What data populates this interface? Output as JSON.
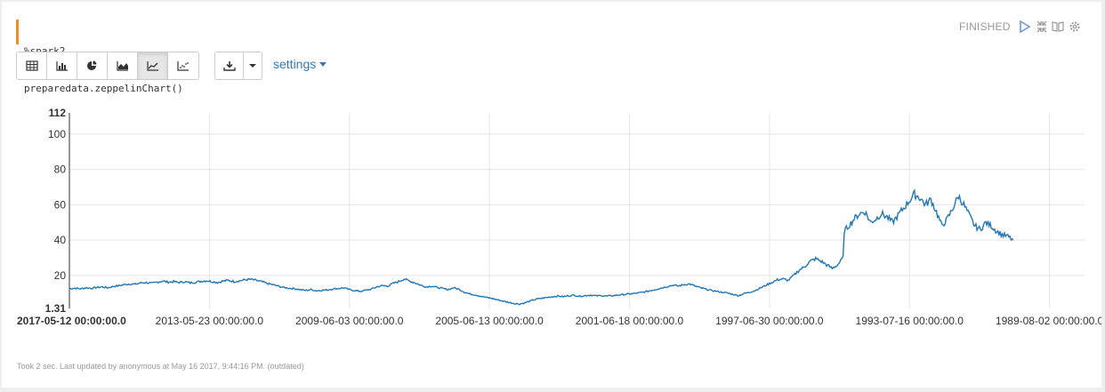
{
  "paragraph": {
    "code_lines": [
      "%spark2",
      "preparedata.zeppelinChart()"
    ],
    "status": "FINISHED",
    "controls": [
      "run-icon",
      "expand-collapse-icon",
      "book-icon",
      "gear-icon"
    ]
  },
  "toolbar": {
    "chart_buttons": [
      "table-icon",
      "bar-chart-icon",
      "pie-chart-icon",
      "area-chart-icon",
      "line-chart-icon",
      "scatter-chart-icon"
    ],
    "active_chart": "line-chart-icon",
    "download_icon": "download-icon",
    "settings_label": "settings"
  },
  "footer": {
    "text": "Took 2 sec. Last updated by anonymous at May 16 2017, 9:44:16 PM. (outdated)"
  },
  "colors": {
    "line": "#1f77b4",
    "accent": "#f48c22",
    "link": "#337ab7"
  },
  "chart_data": {
    "type": "line",
    "title": "",
    "xlabel": "",
    "ylabel": "",
    "x_ticks": [
      "2017-05-12 00:00:00.0",
      "2013-05-23 00:00:00.0",
      "2009-06-03 00:00:00.0",
      "2005-06-13 00:00:00.0",
      "2001-06-18 00:00:00.0",
      "1997-06-30 00:00:00.0",
      "1993-07-16 00:00:00.0",
      "1989-08-02 00:00:00.0"
    ],
    "y_ticks": [
      20,
      40,
      60,
      80,
      100
    ],
    "ylim": [
      1.31,
      112
    ],
    "ylim_labels": [
      "1.31",
      "112"
    ],
    "grid": true,
    "x_index_range": [
      0,
      1850
    ],
    "series": [
      {
        "values": [
          [
            0,
            12.5
          ],
          [
            10,
            12.8
          ],
          [
            20,
            12.4
          ],
          [
            30,
            13.0
          ],
          [
            40,
            12.7
          ],
          [
            50,
            13.2
          ],
          [
            60,
            13.5
          ],
          [
            70,
            13.0
          ],
          [
            80,
            13.8
          ],
          [
            90,
            14.2
          ],
          [
            100,
            14.8
          ],
          [
            110,
            15.2
          ],
          [
            120,
            15.0
          ],
          [
            130,
            15.8
          ],
          [
            140,
            16.0
          ],
          [
            150,
            15.5
          ],
          [
            160,
            16.2
          ],
          [
            170,
            16.8
          ],
          [
            180,
            16.2
          ],
          [
            190,
            16.5
          ],
          [
            200,
            16.0
          ],
          [
            210,
            16.4
          ],
          [
            220,
            15.8
          ],
          [
            230,
            16.2
          ],
          [
            240,
            16.7
          ],
          [
            250,
            17.0
          ],
          [
            260,
            16.5
          ],
          [
            270,
            16.0
          ],
          [
            280,
            16.8
          ],
          [
            290,
            17.2
          ],
          [
            300,
            16.5
          ],
          [
            310,
            17.0
          ],
          [
            320,
            17.5
          ],
          [
            330,
            17.8
          ],
          [
            340,
            17.2
          ],
          [
            350,
            16.5
          ],
          [
            360,
            15.5
          ],
          [
            370,
            14.8
          ],
          [
            380,
            14.0
          ],
          [
            390,
            13.2
          ],
          [
            400,
            12.8
          ],
          [
            410,
            12.5
          ],
          [
            420,
            12.0
          ],
          [
            430,
            11.5
          ],
          [
            440,
            12.0
          ],
          [
            450,
            11.3
          ],
          [
            460,
            11.6
          ],
          [
            470,
            11.8
          ],
          [
            480,
            12.3
          ],
          [
            490,
            12.6
          ],
          [
            500,
            13.0
          ],
          [
            510,
            12.0
          ],
          [
            520,
            11.4
          ],
          [
            530,
            11.0
          ],
          [
            540,
            11.6
          ],
          [
            550,
            12.2
          ],
          [
            560,
            13.5
          ],
          [
            570,
            14.2
          ],
          [
            580,
            14.0
          ],
          [
            590,
            15.5
          ],
          [
            600,
            16.5
          ],
          [
            610,
            18.0
          ],
          [
            620,
            16.8
          ],
          [
            630,
            15.8
          ],
          [
            640,
            14.5
          ],
          [
            650,
            13.5
          ],
          [
            660,
            14.0
          ],
          [
            670,
            13.2
          ],
          [
            680,
            12.6
          ],
          [
            690,
            12.0
          ],
          [
            700,
            13.0
          ],
          [
            710,
            12.2
          ],
          [
            720,
            10.5
          ],
          [
            730,
            9.5
          ],
          [
            740,
            9.0
          ],
          [
            750,
            8.2
          ],
          [
            760,
            7.5
          ],
          [
            770,
            7.0
          ],
          [
            780,
            6.2
          ],
          [
            790,
            5.5
          ],
          [
            800,
            4.8
          ],
          [
            810,
            4.2
          ],
          [
            820,
            3.8
          ],
          [
            830,
            4.5
          ],
          [
            840,
            5.5
          ],
          [
            850,
            6.5
          ],
          [
            860,
            7.0
          ],
          [
            870,
            7.5
          ],
          [
            880,
            8.0
          ],
          [
            890,
            8.3
          ],
          [
            900,
            8.0
          ],
          [
            910,
            8.5
          ],
          [
            920,
            8.8
          ],
          [
            930,
            8.2
          ],
          [
            940,
            8.6
          ],
          [
            950,
            8.9
          ],
          [
            960,
            8.4
          ],
          [
            970,
            8.6
          ],
          [
            980,
            8.3
          ],
          [
            990,
            8.5
          ],
          [
            1000,
            8.9
          ],
          [
            1010,
            9.2
          ],
          [
            1020,
            9.5
          ],
          [
            1030,
            9.8
          ],
          [
            1040,
            10.2
          ],
          [
            1050,
            10.8
          ],
          [
            1060,
            11.5
          ],
          [
            1070,
            12.2
          ],
          [
            1080,
            13.0
          ],
          [
            1090,
            13.8
          ],
          [
            1100,
            14.5
          ],
          [
            1110,
            14.0
          ],
          [
            1120,
            14.8
          ],
          [
            1130,
            15.2
          ],
          [
            1140,
            14.0
          ],
          [
            1150,
            13.0
          ],
          [
            1160,
            12.2
          ],
          [
            1170,
            11.5
          ],
          [
            1180,
            11.0
          ],
          [
            1190,
            10.5
          ],
          [
            1200,
            10.0
          ],
          [
            1210,
            9.2
          ],
          [
            1220,
            8.6
          ],
          [
            1230,
            9.8
          ],
          [
            1240,
            10.5
          ],
          [
            1250,
            11.5
          ],
          [
            1260,
            13.0
          ],
          [
            1270,
            14.5
          ],
          [
            1280,
            16.0
          ],
          [
            1290,
            17.5
          ],
          [
            1300,
            18.0
          ],
          [
            1310,
            17.2
          ],
          [
            1320,
            20.0
          ],
          [
            1330,
            23.0
          ],
          [
            1340,
            25.0
          ],
          [
            1350,
            28.0
          ],
          [
            1360,
            29.5
          ],
          [
            1370,
            28.0
          ],
          [
            1380,
            26.0
          ],
          [
            1390,
            24.0
          ],
          [
            1400,
            26.0
          ],
          [
            1410,
            30.0
          ],
          [
            1412,
            45.0
          ],
          [
            1420,
            48.0
          ],
          [
            1430,
            52.0
          ],
          [
            1440,
            55.0
          ],
          [
            1450,
            56.0
          ],
          [
            1460,
            50.0
          ],
          [
            1470,
            52.0
          ],
          [
            1480,
            55.0
          ],
          [
            1490,
            53.0
          ],
          [
            1500,
            50.0
          ],
          [
            1510,
            54.0
          ],
          [
            1520,
            58.0
          ],
          [
            1530,
            62.0
          ],
          [
            1540,
            66.0
          ],
          [
            1550,
            64.0
          ],
          [
            1560,
            60.0
          ],
          [
            1570,
            63.0
          ],
          [
            1580,
            56.0
          ],
          [
            1590,
            48.0
          ],
          [
            1600,
            52.0
          ],
          [
            1610,
            58.0
          ],
          [
            1620,
            65.0
          ],
          [
            1630,
            60.0
          ],
          [
            1640,
            54.0
          ],
          [
            1650,
            48.0
          ],
          [
            1660,
            46.0
          ],
          [
            1670,
            50.0
          ],
          [
            1680,
            48.0
          ],
          [
            1690,
            45.0
          ],
          [
            1700,
            43.0
          ],
          [
            1710,
            42.0
          ],
          [
            1720,
            40.0
          ]
        ]
      }
    ]
  }
}
